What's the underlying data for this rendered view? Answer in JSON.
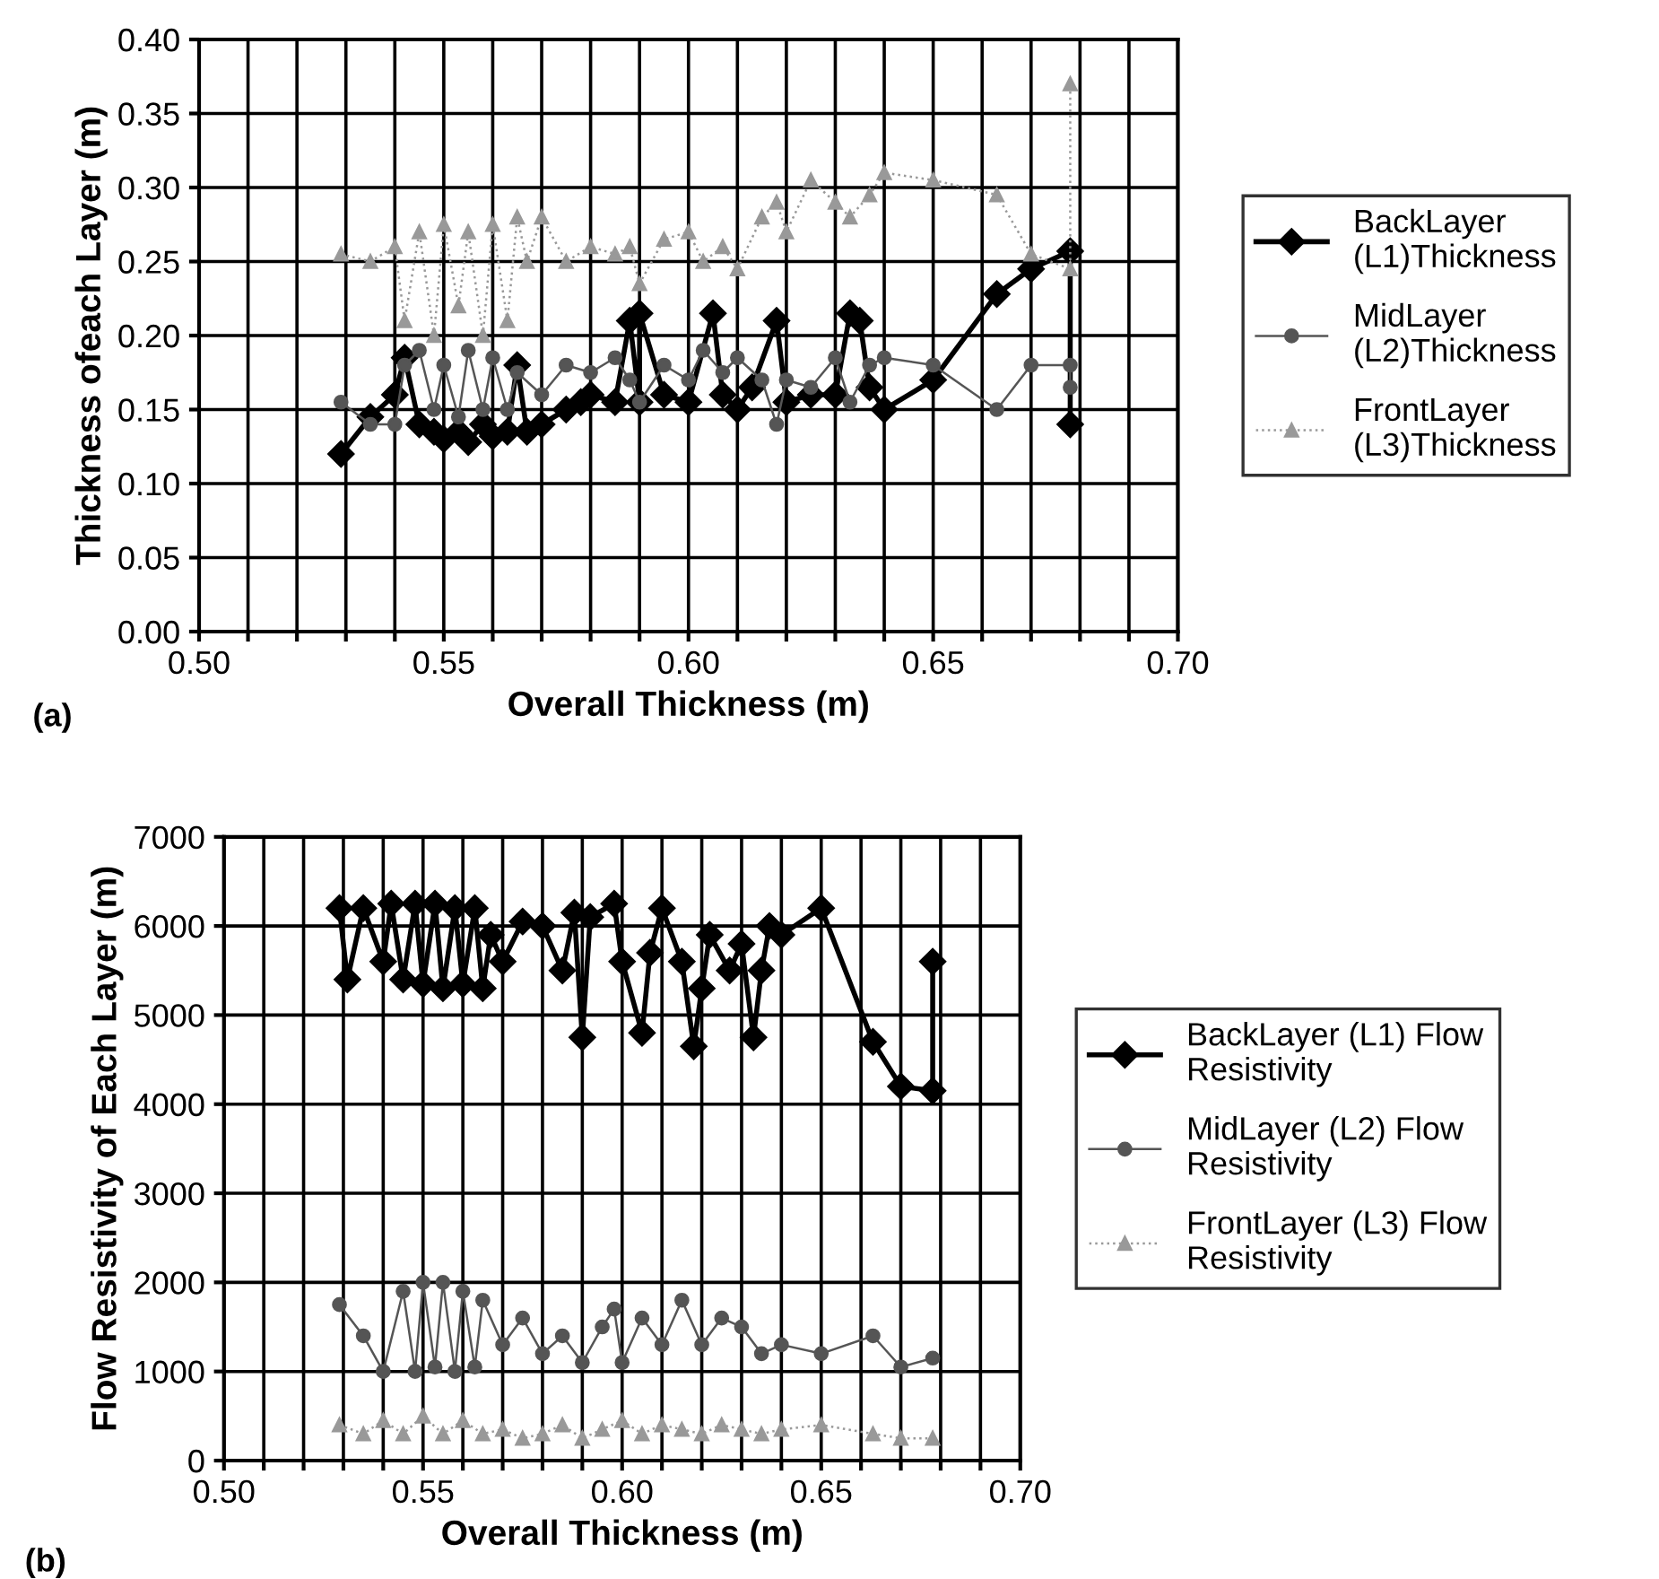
{
  "chart_data": [
    {
      "type": "line",
      "xlabel": "Overall Thickness (m)",
      "ylabel": "Thickness ofeach Layer (m)",
      "annotations": [
        "(a)"
      ],
      "xlim": [
        0.5,
        0.7
      ],
      "ylim": [
        0,
        0.4
      ],
      "xticks": [
        {
          "value": 0.5,
          "label": "0.50"
        },
        {
          "value": 0.51,
          "label": null
        },
        {
          "value": 0.52,
          "label": null
        },
        {
          "value": 0.53,
          "label": null
        },
        {
          "value": 0.54,
          "label": null
        },
        {
          "value": 0.55,
          "label": "0.55"
        },
        {
          "value": 0.56,
          "label": null
        },
        {
          "value": 0.57,
          "label": null
        },
        {
          "value": 0.58,
          "label": null
        },
        {
          "value": 0.59,
          "label": null
        },
        {
          "value": 0.6,
          "label": "0.60"
        },
        {
          "value": 0.61,
          "label": null
        },
        {
          "value": 0.62,
          "label": null
        },
        {
          "value": 0.63,
          "label": null
        },
        {
          "value": 0.64,
          "label": null
        },
        {
          "value": 0.65,
          "label": "0.65"
        },
        {
          "value": 0.66,
          "label": null
        },
        {
          "value": 0.67,
          "label": null
        },
        {
          "value": 0.68,
          "label": null
        },
        {
          "value": 0.69,
          "label": null
        },
        {
          "value": 0.7,
          "label": "0.70"
        }
      ],
      "yticks": [
        {
          "value": 0,
          "label": "0.00"
        },
        {
          "value": 0.05,
          "label": "0.05"
        },
        {
          "value": 0.1,
          "label": "0.10"
        },
        {
          "value": 0.15,
          "label": "0.15"
        },
        {
          "value": 0.2,
          "label": "0.20"
        },
        {
          "value": 0.25,
          "label": "0.25"
        },
        {
          "value": 0.3,
          "label": "0.30"
        },
        {
          "value": 0.35,
          "label": "0.35"
        },
        {
          "value": 0.4,
          "label": "0.40"
        }
      ],
      "grid": true,
      "legend": "right",
      "series": [
        {
          "name": "BackLayer\n(L1)Thickness",
          "color": "#000000",
          "marker": "diamond",
          "line_style": "solid",
          "x": [
            0.529,
            0.535,
            0.54,
            0.542,
            0.545,
            0.548,
            0.55,
            0.553,
            0.555,
            0.558,
            0.56,
            0.563,
            0.565,
            0.567,
            0.57,
            0.575,
            0.578,
            0.58,
            0.585,
            0.588,
            0.59,
            0.59,
            0.595,
            0.6,
            0.605,
            0.607,
            0.61,
            0.613,
            0.618,
            0.62,
            0.625,
            0.63,
            0.633,
            0.635,
            0.637,
            0.64,
            0.65,
            0.663,
            0.67,
            0.678,
            0.678
          ],
          "values": [
            0.12,
            0.145,
            0.16,
            0.185,
            0.14,
            0.135,
            0.13,
            0.135,
            0.128,
            0.14,
            0.132,
            0.135,
            0.18,
            0.135,
            0.14,
            0.15,
            0.155,
            0.16,
            0.155,
            0.21,
            0.155,
            0.215,
            0.16,
            0.155,
            0.215,
            0.16,
            0.15,
            0.165,
            0.21,
            0.155,
            0.16,
            0.16,
            0.215,
            0.21,
            0.165,
            0.15,
            0.17,
            0.228,
            0.245,
            0.257,
            0.14
          ]
        },
        {
          "name": "MidLayer\n(L2)Thickness",
          "color": "#555555",
          "marker": "circle",
          "line_style": "solid",
          "x": [
            0.529,
            0.535,
            0.54,
            0.542,
            0.545,
            0.548,
            0.55,
            0.553,
            0.555,
            0.558,
            0.56,
            0.563,
            0.565,
            0.57,
            0.575,
            0.58,
            0.585,
            0.588,
            0.59,
            0.595,
            0.6,
            0.603,
            0.607,
            0.61,
            0.615,
            0.618,
            0.62,
            0.625,
            0.63,
            0.633,
            0.637,
            0.64,
            0.65,
            0.663,
            0.67,
            0.678,
            0.678
          ],
          "values": [
            0.155,
            0.14,
            0.14,
            0.18,
            0.19,
            0.15,
            0.18,
            0.145,
            0.19,
            0.15,
            0.185,
            0.15,
            0.175,
            0.16,
            0.18,
            0.175,
            0.185,
            0.17,
            0.155,
            0.18,
            0.17,
            0.19,
            0.175,
            0.185,
            0.17,
            0.14,
            0.17,
            0.165,
            0.185,
            0.155,
            0.18,
            0.185,
            0.18,
            0.15,
            0.18,
            0.18,
            0.165
          ]
        },
        {
          "name": "FrontLayer\n(L3)Thickness",
          "color": "#999999",
          "marker": "triangle",
          "line_style": "dotted",
          "x": [
            0.529,
            0.535,
            0.54,
            0.542,
            0.545,
            0.548,
            0.55,
            0.553,
            0.555,
            0.558,
            0.56,
            0.563,
            0.565,
            0.567,
            0.57,
            0.575,
            0.58,
            0.585,
            0.588,
            0.59,
            0.595,
            0.6,
            0.603,
            0.607,
            0.61,
            0.615,
            0.618,
            0.62,
            0.625,
            0.63,
            0.633,
            0.637,
            0.64,
            0.65,
            0.663,
            0.67,
            0.678,
            0.678
          ],
          "values": [
            0.255,
            0.25,
            0.26,
            0.21,
            0.27,
            0.2,
            0.275,
            0.22,
            0.27,
            0.2,
            0.275,
            0.21,
            0.28,
            0.25,
            0.28,
            0.25,
            0.26,
            0.255,
            0.26,
            0.235,
            0.265,
            0.27,
            0.25,
            0.26,
            0.245,
            0.28,
            0.29,
            0.27,
            0.305,
            0.29,
            0.28,
            0.295,
            0.31,
            0.305,
            0.295,
            0.255,
            0.245,
            0.37
          ]
        }
      ]
    },
    {
      "type": "line",
      "xlabel": "Overall Thickness (m)",
      "ylabel": "Flow Resistivity of Each Layer (m)",
      "annotations": [
        "(b)"
      ],
      "xlim": [
        0.5,
        0.7
      ],
      "ylim": [
        0,
        7000
      ],
      "xticks": [
        {
          "value": 0.5,
          "label": "0.50"
        },
        {
          "value": 0.51,
          "label": null
        },
        {
          "value": 0.52,
          "label": null
        },
        {
          "value": 0.53,
          "label": null
        },
        {
          "value": 0.54,
          "label": null
        },
        {
          "value": 0.55,
          "label": "0.55"
        },
        {
          "value": 0.56,
          "label": null
        },
        {
          "value": 0.57,
          "label": null
        },
        {
          "value": 0.58,
          "label": null
        },
        {
          "value": 0.59,
          "label": null
        },
        {
          "value": 0.6,
          "label": "0.60"
        },
        {
          "value": 0.61,
          "label": null
        },
        {
          "value": 0.62,
          "label": null
        },
        {
          "value": 0.63,
          "label": null
        },
        {
          "value": 0.64,
          "label": null
        },
        {
          "value": 0.65,
          "label": "0.65"
        },
        {
          "value": 0.66,
          "label": null
        },
        {
          "value": 0.67,
          "label": null
        },
        {
          "value": 0.68,
          "label": null
        },
        {
          "value": 0.69,
          "label": null
        },
        {
          "value": 0.7,
          "label": "0.70"
        }
      ],
      "yticks": [
        0,
        1000,
        2000,
        3000,
        4000,
        5000,
        6000,
        7000
      ],
      "grid": true,
      "legend": "right",
      "series": [
        {
          "name": "BackLayer (L1) Flow\nResistivity",
          "color": "#000000",
          "marker": "diamond",
          "line_style": "solid",
          "x": [
            0.529,
            0.531,
            0.535,
            0.54,
            0.542,
            0.545,
            0.548,
            0.55,
            0.553,
            0.555,
            0.558,
            0.56,
            0.563,
            0.565,
            0.567,
            0.57,
            0.575,
            0.58,
            0.585,
            0.588,
            0.59,
            0.592,
            0.598,
            0.6,
            0.605,
            0.607,
            0.61,
            0.615,
            0.618,
            0.62,
            0.622,
            0.627,
            0.63,
            0.633,
            0.635,
            0.637,
            0.64,
            0.65,
            0.663,
            0.67,
            0.678,
            0.678
          ],
          "values": [
            6200,
            5400,
            6200,
            5600,
            6250,
            5400,
            6250,
            5350,
            6250,
            5300,
            6200,
            5350,
            6200,
            5300,
            5900,
            5600,
            6050,
            6000,
            5500,
            6150,
            4750,
            6100,
            6250,
            5600,
            4800,
            5700,
            6200,
            5600,
            4650,
            5300,
            5900,
            5500,
            5800,
            4750,
            5500,
            6000,
            5900,
            6200,
            4700,
            4200,
            4150,
            5600
          ]
        },
        {
          "name": "MidLayer (L2) Flow\nResistivity",
          "color": "#555555",
          "marker": "circle",
          "line_style": "solid",
          "x": [
            0.529,
            0.535,
            0.54,
            0.545,
            0.548,
            0.55,
            0.553,
            0.555,
            0.558,
            0.56,
            0.563,
            0.565,
            0.57,
            0.575,
            0.58,
            0.585,
            0.59,
            0.595,
            0.598,
            0.6,
            0.605,
            0.61,
            0.615,
            0.62,
            0.625,
            0.63,
            0.635,
            0.64,
            0.65,
            0.663,
            0.67,
            0.678
          ],
          "values": [
            1750,
            1400,
            1000,
            1900,
            1000,
            2000,
            1050,
            2000,
            1000,
            1900,
            1050,
            1800,
            1300,
            1600,
            1200,
            1400,
            1100,
            1500,
            1700,
            1100,
            1600,
            1300,
            1800,
            1300,
            1600,
            1500,
            1200,
            1300,
            1200,
            1400,
            1050,
            1150
          ]
        },
        {
          "name": "FrontLayer (L3) Flow\nResistivity",
          "color": "#999999",
          "marker": "triangle",
          "line_style": "dotted",
          "x": [
            0.529,
            0.535,
            0.54,
            0.545,
            0.55,
            0.555,
            0.56,
            0.565,
            0.57,
            0.575,
            0.58,
            0.585,
            0.59,
            0.595,
            0.6,
            0.605,
            0.61,
            0.615,
            0.62,
            0.625,
            0.63,
            0.635,
            0.64,
            0.65,
            0.663,
            0.67,
            0.678
          ],
          "values": [
            400,
            300,
            450,
            300,
            500,
            300,
            450,
            300,
            350,
            250,
            300,
            400,
            250,
            350,
            450,
            300,
            400,
            350,
            300,
            400,
            350,
            300,
            350,
            400,
            300,
            250,
            250
          ]
        }
      ]
    }
  ]
}
